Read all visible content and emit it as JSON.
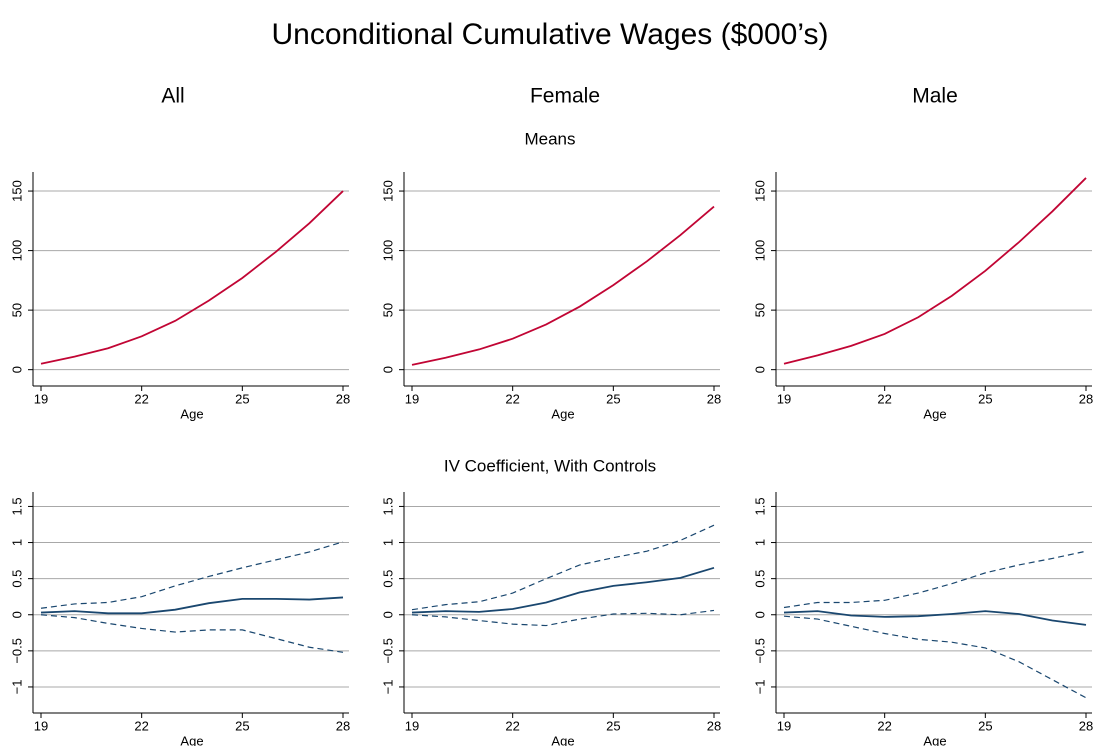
{
  "title": "Unconditional Cumulative Wages ($000’s)",
  "column_titles": [
    "All",
    "Female",
    "Male"
  ],
  "row_titles": [
    "Means",
    "IV Coefficient, With Controls"
  ],
  "chart_data": [
    {
      "type": "line",
      "xlabel": "Age",
      "x": [
        19,
        20,
        21,
        22,
        23,
        24,
        25,
        26,
        27,
        28
      ],
      "xlim": [
        19,
        28
      ],
      "xticks": [
        19,
        22,
        25,
        28
      ],
      "ylim": [
        -7,
        166
      ],
      "yticks": [
        0,
        50,
        100,
        150
      ],
      "grid": true,
      "series": [
        {
          "color": "#c10534",
          "dash": "solid",
          "values": [
            5,
            11,
            18,
            28,
            41,
            58,
            77,
            99,
            123,
            150
          ]
        }
      ]
    },
    {
      "type": "line",
      "xlabel": "Age",
      "x": [
        19,
        20,
        21,
        22,
        23,
        24,
        25,
        26,
        27,
        28
      ],
      "xlim": [
        19,
        28
      ],
      "xticks": [
        19,
        22,
        25,
        28
      ],
      "ylim": [
        -7,
        166
      ],
      "yticks": [
        0,
        50,
        100,
        150
      ],
      "grid": true,
      "series": [
        {
          "color": "#c10534",
          "dash": "solid",
          "values": [
            4,
            10,
            17,
            26,
            38,
            53,
            71,
            91,
            113,
            137
          ]
        }
      ]
    },
    {
      "type": "line",
      "xlabel": "Age",
      "x": [
        19,
        20,
        21,
        22,
        23,
        24,
        25,
        26,
        27,
        28
      ],
      "xlim": [
        19,
        28
      ],
      "xticks": [
        19,
        22,
        25,
        28
      ],
      "ylim": [
        -7,
        166
      ],
      "yticks": [
        0,
        50,
        100,
        150
      ],
      "grid": true,
      "series": [
        {
          "color": "#c10534",
          "dash": "solid",
          "values": [
            5,
            12,
            20,
            30,
            44,
            62,
            83,
            107,
            133,
            161
          ]
        }
      ]
    },
    {
      "type": "line",
      "xlabel": "Age",
      "x": [
        19,
        20,
        21,
        22,
        23,
        24,
        25,
        26,
        27,
        28
      ],
      "xlim": [
        19,
        28
      ],
      "xticks": [
        19,
        22,
        25,
        28
      ],
      "ylim": [
        -1.25,
        1.7
      ],
      "yticks": [
        {
          "value": -1,
          "label": "−1"
        },
        {
          "value": -0.5,
          "label": "−0.5"
        },
        0,
        0.5,
        1,
        1.5
      ],
      "grid": true,
      "series": [
        {
          "color": "#1a476f",
          "dash": "solid",
          "values": [
            0.03,
            0.05,
            0.02,
            0.02,
            0.07,
            0.16,
            0.22,
            0.22,
            0.21,
            0.24
          ]
        },
        {
          "color": "#1a476f",
          "dash": "dashed",
          "values": [
            0.09,
            0.15,
            0.17,
            0.25,
            0.4,
            0.53,
            0.65,
            0.76,
            0.87,
            1.01
          ]
        },
        {
          "color": "#1a476f",
          "dash": "dashed",
          "values": [
            0,
            -0.04,
            -0.12,
            -0.19,
            -0.24,
            -0.21,
            -0.21,
            -0.33,
            -0.45,
            -0.52
          ]
        }
      ]
    },
    {
      "type": "line",
      "xlabel": "Age",
      "x": [
        19,
        20,
        21,
        22,
        23,
        24,
        25,
        26,
        27,
        28
      ],
      "xlim": [
        19,
        28
      ],
      "xticks": [
        19,
        22,
        25,
        28
      ],
      "ylim": [
        -1.25,
        1.7
      ],
      "yticks": [
        {
          "value": -1,
          "label": "−1"
        },
        {
          "value": -0.5,
          "label": "−0.5"
        },
        0,
        0.5,
        1,
        1.5
      ],
      "grid": true,
      "series": [
        {
          "color": "#1a476f",
          "dash": "solid",
          "values": [
            0.03,
            0.05,
            0.04,
            0.08,
            0.17,
            0.31,
            0.4,
            0.45,
            0.51,
            0.65
          ]
        },
        {
          "color": "#1a476f",
          "dash": "dashed",
          "values": [
            0.07,
            0.14,
            0.18,
            0.3,
            0.5,
            0.69,
            0.79,
            0.88,
            1.03,
            1.24
          ]
        },
        {
          "color": "#1a476f",
          "dash": "dashed",
          "values": [
            0,
            -0.03,
            -0.08,
            -0.13,
            -0.15,
            -0.06,
            0.01,
            0.02,
            0,
            0.06
          ]
        }
      ]
    },
    {
      "type": "line",
      "xlabel": "Age",
      "x": [
        19,
        20,
        21,
        22,
        23,
        24,
        25,
        26,
        27,
        28
      ],
      "xlim": [
        19,
        28
      ],
      "xticks": [
        19,
        22,
        25,
        28
      ],
      "ylim": [
        -1.25,
        1.7
      ],
      "yticks": [
        {
          "value": -1,
          "label": "−1"
        },
        {
          "value": -0.5,
          "label": "−0.5"
        },
        0,
        0.5,
        1,
        1.5
      ],
      "grid": true,
      "series": [
        {
          "color": "#1a476f",
          "dash": "solid",
          "values": [
            0.03,
            0.05,
            -0.01,
            -0.03,
            -0.02,
            0.01,
            0.05,
            0.01,
            -0.08,
            -0.14
          ]
        },
        {
          "color": "#1a476f",
          "dash": "dashed",
          "values": [
            0.1,
            0.17,
            0.17,
            0.2,
            0.3,
            0.43,
            0.58,
            0.69,
            0.78,
            0.88
          ]
        },
        {
          "color": "#1a476f",
          "dash": "dashed",
          "values": [
            -0.02,
            -0.06,
            -0.16,
            -0.26,
            -0.34,
            -0.38,
            -0.46,
            -0.65,
            -0.9,
            -1.15
          ]
        }
      ]
    }
  ]
}
